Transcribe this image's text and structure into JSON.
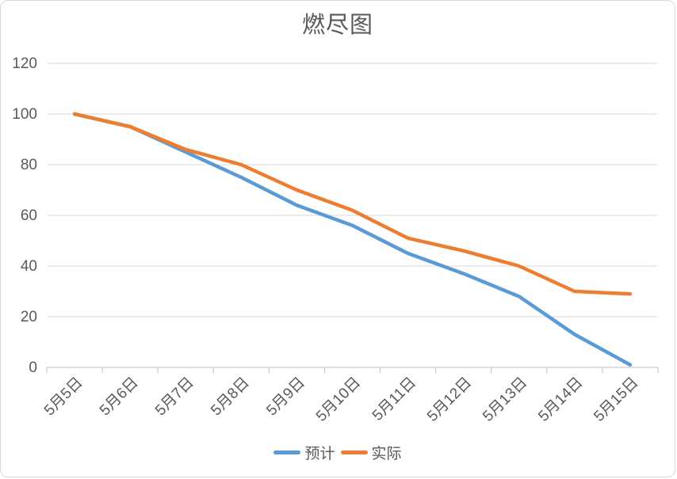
{
  "chart_data": {
    "type": "line",
    "title": "燃尽图",
    "categories": [
      "5月5日",
      "5月6日",
      "5月7日",
      "5月8日",
      "5月9日",
      "5月10日",
      "5月11日",
      "5月12日",
      "5月13日",
      "5月14日",
      "5月15日"
    ],
    "series": [
      {
        "key": "planned",
        "name": "预计",
        "color": "#5B9BD5",
        "values": [
          100,
          95,
          85,
          75,
          64,
          56,
          45,
          37,
          28,
          13,
          1
        ]
      },
      {
        "key": "actual",
        "name": "实际",
        "color": "#ED7D31",
        "values": [
          100,
          95,
          86,
          80,
          70,
          62,
          51,
          46,
          40,
          30,
          29
        ]
      }
    ],
    "ylim": [
      0,
      120
    ],
    "yticks": [
      0,
      20,
      40,
      60,
      80,
      100,
      120
    ],
    "xlabel": "",
    "ylabel": "",
    "x_label_rotation": -45,
    "grid": "horizontal",
    "legend_position": "bottom",
    "colors": {
      "text": "#595959",
      "gridline": "#d9d9d9",
      "axis": "#bfbfbf",
      "background": "#ffffff",
      "border": "#d9d9d9"
    }
  }
}
